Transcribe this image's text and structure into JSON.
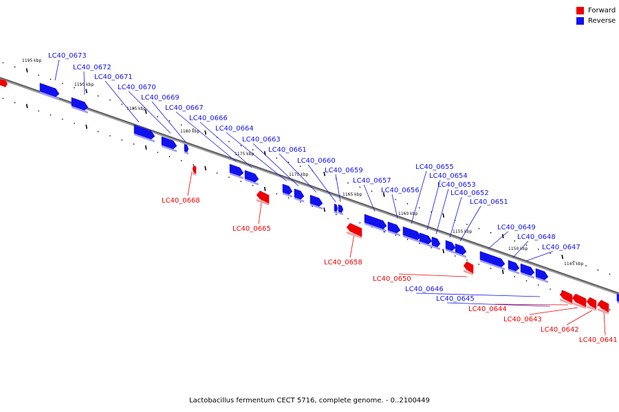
{
  "legend": {
    "items": [
      {
        "label": "Forward",
        "color": "#ee0000"
      },
      {
        "label": "Reverse",
        "color": "#1111ee"
      }
    ]
  },
  "caption": "Lactobacillus fermentum CECT 5716, complete genome. - 0..2100449",
  "ticks": [
    "1195 kbp",
    "1190 kbp",
    "1185 kbp",
    "1180 kbp",
    "1175 kbp",
    "1170 kbp",
    "1165 kbp",
    "1160 kbp",
    "1155 kbp",
    "1150 kbp",
    "1145 kbp"
  ],
  "genes": [
    {
      "name": "LC40_0673",
      "strand": "reverse"
    },
    {
      "name": "LC40_0672",
      "strand": "reverse"
    },
    {
      "name": "LC40_0671",
      "strand": "reverse"
    },
    {
      "name": "LC40_0670",
      "strand": "reverse"
    },
    {
      "name": "LC40_0669",
      "strand": "reverse"
    },
    {
      "name": "LC40_0667",
      "strand": "reverse"
    },
    {
      "name": "LC40_0666",
      "strand": "reverse"
    },
    {
      "name": "LC40_0664",
      "strand": "reverse"
    },
    {
      "name": "LC40_0663",
      "strand": "reverse"
    },
    {
      "name": "LC40_0661",
      "strand": "reverse"
    },
    {
      "name": "LC40_0660",
      "strand": "reverse"
    },
    {
      "name": "LC40_0659",
      "strand": "reverse"
    },
    {
      "name": "LC40_0657",
      "strand": "reverse"
    },
    {
      "name": "LC40_0656",
      "strand": "reverse"
    },
    {
      "name": "LC40_0655",
      "strand": "reverse"
    },
    {
      "name": "LC40_0654",
      "strand": "reverse"
    },
    {
      "name": "LC40_0653",
      "strand": "reverse"
    },
    {
      "name": "LC40_0652",
      "strand": "reverse"
    },
    {
      "name": "LC40_0651",
      "strand": "reverse"
    },
    {
      "name": "LC40_0649",
      "strand": "reverse"
    },
    {
      "name": "LC40_0648",
      "strand": "reverse"
    },
    {
      "name": "LC40_0647",
      "strand": "reverse"
    },
    {
      "name": "LC40_0646",
      "strand": "reverse"
    },
    {
      "name": "LC40_0645",
      "strand": "reverse"
    },
    {
      "name": "LC40_0668",
      "strand": "forward"
    },
    {
      "name": "LC40_0665",
      "strand": "forward"
    },
    {
      "name": "LC40_0658",
      "strand": "forward"
    },
    {
      "name": "LC40_0650",
      "strand": "forward"
    },
    {
      "name": "LC40_0644",
      "strand": "forward"
    },
    {
      "name": "LC40_0643",
      "strand": "forward"
    },
    {
      "name": "LC40_0642",
      "strand": "forward"
    },
    {
      "name": "LC40_0641",
      "strand": "forward"
    }
  ]
}
